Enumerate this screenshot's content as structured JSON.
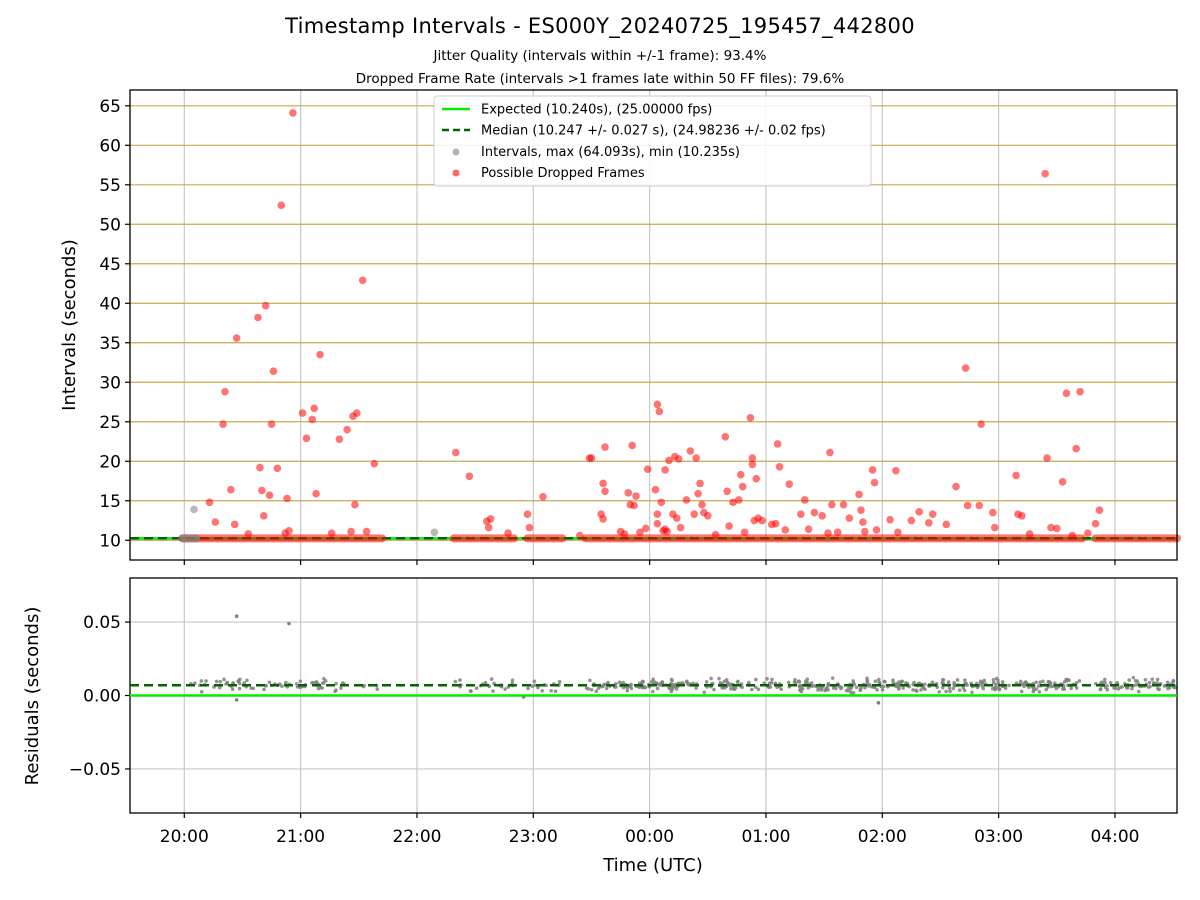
{
  "header": {
    "title": "Timestamp Intervals - ES000Y_20240725_195457_442800",
    "subtitle1": "Jitter Quality (intervals within +/-1 frame): 93.4%",
    "subtitle2": "Dropped Frame Rate (intervals >1 frames late within 50 FF files): 79.6%"
  },
  "colors": {
    "expected": "#00ee00",
    "median": "#006400",
    "intervals": "#808080",
    "dropped": "#ff0000",
    "hgrid_top": "#c8a850",
    "grid": "#c8c8c8"
  },
  "chart_data": [
    {
      "type": "scatter",
      "ylabel": "Intervals (seconds)",
      "ylim": [
        7.5,
        67
      ],
      "yticks": [
        "10",
        "15",
        "20",
        "25",
        "30",
        "35",
        "40",
        "45",
        "50",
        "55",
        "60",
        "65"
      ],
      "xlim": [
        "19:32",
        "04:32"
      ],
      "grid": true,
      "legend_position": "top-center",
      "legend": {
        "expected": "Expected (10.240s), (25.00000 fps)",
        "median": "Median (10.247 +/- 0.027 s), (24.98236 +/- 0.02 fps)",
        "intervals": "Intervals, max (64.093s), min (10.235s)",
        "dropped": "Possible Dropped Frames"
      },
      "expected_line": 10.24,
      "median_line": 10.247,
      "baseline_value": 10.24,
      "baseline_segments": [
        [
          "19:59",
          "21:42"
        ],
        [
          "22:19",
          "22:50"
        ],
        [
          "22:57",
          "23:15"
        ],
        [
          "23:27",
          "03:43"
        ],
        [
          "03:50",
          "04:32"
        ]
      ],
      "gray_outliers": [
        [
          "20:05",
          13.9
        ],
        [
          "22:09",
          11.0
        ]
      ],
      "dropped_points": [
        [
          "20:13",
          14.8
        ],
        [
          "20:16",
          12.3
        ],
        [
          "20:20",
          24.7
        ],
        [
          "20:21",
          28.8
        ],
        [
          "20:24",
          16.4
        ],
        [
          "20:26",
          12.0
        ],
        [
          "20:27",
          35.6
        ],
        [
          "20:33",
          10.8
        ],
        [
          "20:38",
          38.2
        ],
        [
          "20:39",
          19.2
        ],
        [
          "20:40",
          16.3
        ],
        [
          "20:41",
          13.1
        ],
        [
          "20:42",
          39.7
        ],
        [
          "20:44",
          15.7
        ],
        [
          "20:45",
          24.7
        ],
        [
          "20:46",
          31.4
        ],
        [
          "20:48",
          19.1
        ],
        [
          "20:50",
          52.4
        ],
        [
          "20:52",
          10.9
        ],
        [
          "20:53",
          15.3
        ],
        [
          "20:54",
          11.2
        ],
        [
          "20:56",
          64.1
        ],
        [
          "21:01",
          26.1
        ],
        [
          "21:03",
          22.9
        ],
        [
          "21:06",
          25.3
        ],
        [
          "21:07",
          26.7
        ],
        [
          "21:08",
          15.9
        ],
        [
          "21:10",
          33.5
        ],
        [
          "21:16",
          10.9
        ],
        [
          "21:20",
          22.8
        ],
        [
          "21:24",
          24.0
        ],
        [
          "21:26",
          11.1
        ],
        [
          "21:27",
          25.7
        ],
        [
          "21:28",
          14.5
        ],
        [
          "21:29",
          26.1
        ],
        [
          "21:32",
          42.9
        ],
        [
          "21:34",
          11.1
        ],
        [
          "21:38",
          19.7
        ],
        [
          "22:20",
          21.1
        ],
        [
          "22:27",
          18.1
        ],
        [
          "22:36",
          12.4
        ],
        [
          "22:37",
          11.6
        ],
        [
          "22:38",
          12.7
        ],
        [
          "22:47",
          10.9
        ],
        [
          "22:57",
          13.3
        ],
        [
          "22:58",
          11.6
        ],
        [
          "23:05",
          15.5
        ],
        [
          "23:24",
          10.6
        ],
        [
          "23:29",
          20.4
        ],
        [
          "23:30",
          20.4
        ],
        [
          "23:35",
          13.3
        ],
        [
          "23:36",
          17.2
        ],
        [
          "23:36",
          12.7
        ],
        [
          "23:37",
          21.8
        ],
        [
          "23:37",
          16.2
        ],
        [
          "23:45",
          11.1
        ],
        [
          "23:47",
          10.8
        ],
        [
          "23:49",
          16.0
        ],
        [
          "23:50",
          14.5
        ],
        [
          "23:51",
          22.0
        ],
        [
          "23:52",
          14.4
        ],
        [
          "23:53",
          15.6
        ],
        [
          "23:55",
          11.0
        ],
        [
          "23:58",
          11.5
        ],
        [
          "23:59",
          19.0
        ],
        [
          "00:03",
          16.4
        ],
        [
          "00:04",
          13.3
        ],
        [
          "00:04",
          12.1
        ],
        [
          "00:04",
          27.2
        ],
        [
          "00:05",
          26.3
        ],
        [
          "00:06",
          14.8
        ],
        [
          "00:07",
          11.2
        ],
        [
          "00:08",
          11.4
        ],
        [
          "00:08",
          18.9
        ],
        [
          "00:09",
          11.1
        ],
        [
          "00:10",
          20.1
        ],
        [
          "00:12",
          13.3
        ],
        [
          "00:13",
          20.6
        ],
        [
          "00:14",
          12.8
        ],
        [
          "00:15",
          20.3
        ],
        [
          "00:16",
          11.6
        ],
        [
          "00:19",
          15.1
        ],
        [
          "00:21",
          21.3
        ],
        [
          "00:23",
          13.3
        ],
        [
          "00:24",
          20.4
        ],
        [
          "00:25",
          15.9
        ],
        [
          "00:26",
          17.2
        ],
        [
          "00:27",
          14.5
        ],
        [
          "00:28",
          13.5
        ],
        [
          "00:30",
          13.1
        ],
        [
          "00:34",
          10.7
        ],
        [
          "00:39",
          23.1
        ],
        [
          "00:40",
          16.2
        ],
        [
          "00:41",
          11.8
        ],
        [
          "00:43",
          14.8
        ],
        [
          "00:46",
          15.1
        ],
        [
          "00:47",
          18.3
        ],
        [
          "00:48",
          16.8
        ],
        [
          "00:49",
          11.0
        ],
        [
          "00:52",
          25.5
        ],
        [
          "00:53",
          20.4
        ],
        [
          "00:53",
          19.6
        ],
        [
          "00:54",
          12.5
        ],
        [
          "00:55",
          17.8
        ],
        [
          "00:56",
          12.8
        ],
        [
          "00:58",
          12.5
        ],
        [
          "01:03",
          12.0
        ],
        [
          "01:05",
          12.1
        ],
        [
          "01:06",
          22.2
        ],
        [
          "01:07",
          19.3
        ],
        [
          "01:10",
          11.3
        ],
        [
          "01:12",
          17.1
        ],
        [
          "01:18",
          13.3
        ],
        [
          "01:20",
          15.1
        ],
        [
          "01:22",
          11.4
        ],
        [
          "01:25",
          13.5
        ],
        [
          "01:29",
          13.1
        ],
        [
          "01:32",
          10.9
        ],
        [
          "01:33",
          21.1
        ],
        [
          "01:34",
          14.5
        ],
        [
          "01:37",
          11.0
        ],
        [
          "01:40",
          14.5
        ],
        [
          "01:43",
          12.8
        ],
        [
          "01:48",
          15.8
        ],
        [
          "01:49",
          13.8
        ],
        [
          "01:50",
          12.3
        ],
        [
          "01:51",
          11.1
        ],
        [
          "01:55",
          18.9
        ],
        [
          "01:56",
          17.3
        ],
        [
          "01:57",
          11.3
        ],
        [
          "02:04",
          12.6
        ],
        [
          "02:07",
          18.8
        ],
        [
          "02:08",
          11.0
        ],
        [
          "02:15",
          12.5
        ],
        [
          "02:19",
          13.6
        ],
        [
          "02:24",
          12.2
        ],
        [
          "02:26",
          13.3
        ],
        [
          "02:33",
          12.0
        ],
        [
          "02:38",
          16.8
        ],
        [
          "02:43",
          31.8
        ],
        [
          "02:44",
          14.4
        ],
        [
          "02:50",
          14.4
        ],
        [
          "02:51",
          24.7
        ],
        [
          "02:57",
          13.5
        ],
        [
          "02:58",
          11.6
        ],
        [
          "03:09",
          18.2
        ],
        [
          "03:10",
          13.3
        ],
        [
          "03:12",
          13.1
        ],
        [
          "03:16",
          10.8
        ],
        [
          "03:24",
          56.4
        ],
        [
          "03:25",
          20.4
        ],
        [
          "03:27",
          11.6
        ],
        [
          "03:30",
          11.5
        ],
        [
          "03:33",
          17.4
        ],
        [
          "03:35",
          28.6
        ],
        [
          "03:38",
          10.6
        ],
        [
          "03:40",
          21.6
        ],
        [
          "03:42",
          28.8
        ],
        [
          "03:46",
          10.9
        ],
        [
          "03:50",
          12.1
        ],
        [
          "03:52",
          13.8
        ]
      ]
    },
    {
      "type": "scatter",
      "ylabel": "Residuals (seconds)",
      "xlabel": "Time (UTC)",
      "ylim": [
        -0.08,
        0.08
      ],
      "yticks": [
        "−0.05",
        "0.00",
        "0.05"
      ],
      "xticks": [
        "20:00",
        "21:00",
        "22:00",
        "23:00",
        "00:00",
        "01:00",
        "02:00",
        "03:00",
        "04:00"
      ],
      "grid": true,
      "expected_line": 0.0,
      "median_line": 0.007,
      "residual_segments": [
        [
          "19:59",
          "21:42"
        ],
        [
          "22:19",
          "22:50"
        ],
        [
          "22:57",
          "23:15"
        ],
        [
          "23:27",
          "03:43"
        ],
        [
          "03:50",
          "04:32"
        ]
      ],
      "residual_center": 0.007,
      "residual_spread": 0.006,
      "outlier_points": [
        [
          "20:27",
          0.054
        ],
        [
          "20:54",
          0.049
        ],
        [
          "20:27",
          -0.003
        ],
        [
          "01:58",
          -0.005
        ],
        [
          "22:55",
          -0.001
        ]
      ]
    }
  ]
}
